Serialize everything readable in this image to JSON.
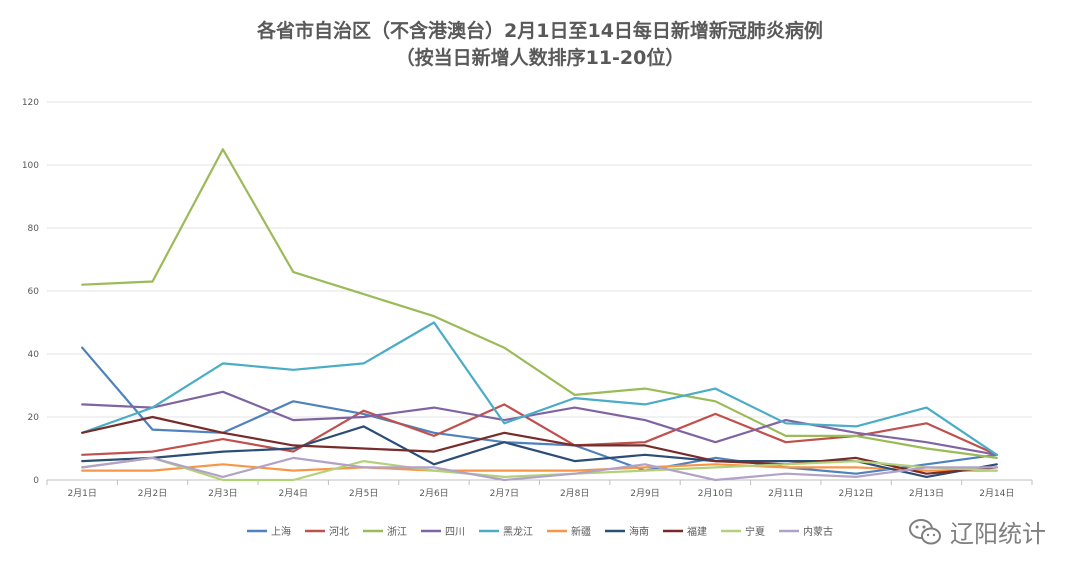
{
  "title_line1": "各省市自治区（不含港澳台）2月1日至14日每日新增新冠肺炎病例",
  "title_line2": "（按当日新增人数排序11-20位）",
  "watermark_text": "辽阳统计",
  "chart_data": {
    "type": "line",
    "title": "各省市自治区（不含港澳台）2月1日至14日每日新增新冠肺炎病例（按当日新增人数排序11-20位）",
    "xlabel": "",
    "ylabel": "",
    "ylim": [
      0,
      120
    ],
    "yticks": [
      0,
      20,
      40,
      60,
      80,
      100,
      120
    ],
    "grid": true,
    "legend_position": "bottom",
    "categories": [
      "2月1日",
      "2月2日",
      "2月3日",
      "2月4日",
      "2月5日",
      "2月6日",
      "2月7日",
      "2月8日",
      "2月9日",
      "2月10日",
      "2月11日",
      "2月12日",
      "2月13日",
      "2月14日"
    ],
    "series": [
      {
        "name": "上海",
        "color": "#4f81bd",
        "values": [
          42,
          16,
          15,
          25,
          21,
          15,
          12,
          11,
          3,
          7,
          4,
          2,
          5,
          8
        ]
      },
      {
        "name": "河北",
        "color": "#c0504d",
        "values": [
          8,
          9,
          13,
          9,
          22,
          14,
          24,
          11,
          12,
          21,
          12,
          14,
          18,
          8
        ]
      },
      {
        "name": "浙江",
        "color": "#9bbb59",
        "values": [
          62,
          63,
          105,
          66,
          59,
          52,
          42,
          27,
          29,
          25,
          14,
          14,
          10,
          7
        ]
      },
      {
        "name": "四川",
        "color": "#8064a2",
        "values": [
          24,
          23,
          28,
          19,
          20,
          23,
          19,
          23,
          19,
          12,
          19,
          15,
          12,
          8
        ]
      },
      {
        "name": "黑龙江",
        "color": "#4bacc6",
        "values": [
          15,
          23,
          37,
          35,
          37,
          50,
          18,
          26,
          24,
          29,
          18,
          17,
          23,
          8
        ]
      },
      {
        "name": "新疆",
        "color": "#f79646",
        "values": [
          3,
          3,
          5,
          3,
          4,
          3,
          3,
          3,
          4,
          5,
          4,
          4,
          3,
          3
        ]
      },
      {
        "name": "海南",
        "color": "#2c4d75",
        "values": [
          6,
          7,
          9,
          10,
          17,
          5,
          12,
          6,
          8,
          6,
          6,
          6,
          1,
          5
        ]
      },
      {
        "name": "福建",
        "color": "#772c2a",
        "values": [
          15,
          20,
          15,
          11,
          10,
          9,
          15,
          11,
          11,
          6,
          5,
          7,
          2,
          4
        ]
      },
      {
        "name": "宁夏",
        "color": "#b3d17a",
        "values": [
          4,
          7,
          0,
          0,
          6,
          3,
          1,
          2,
          3,
          4,
          5,
          6,
          4,
          3
        ]
      },
      {
        "name": "内蒙古",
        "color": "#b2a2c7",
        "values": [
          4,
          7,
          1,
          7,
          4,
          4,
          0,
          2,
          5,
          0,
          2,
          1,
          4,
          4
        ]
      }
    ]
  }
}
